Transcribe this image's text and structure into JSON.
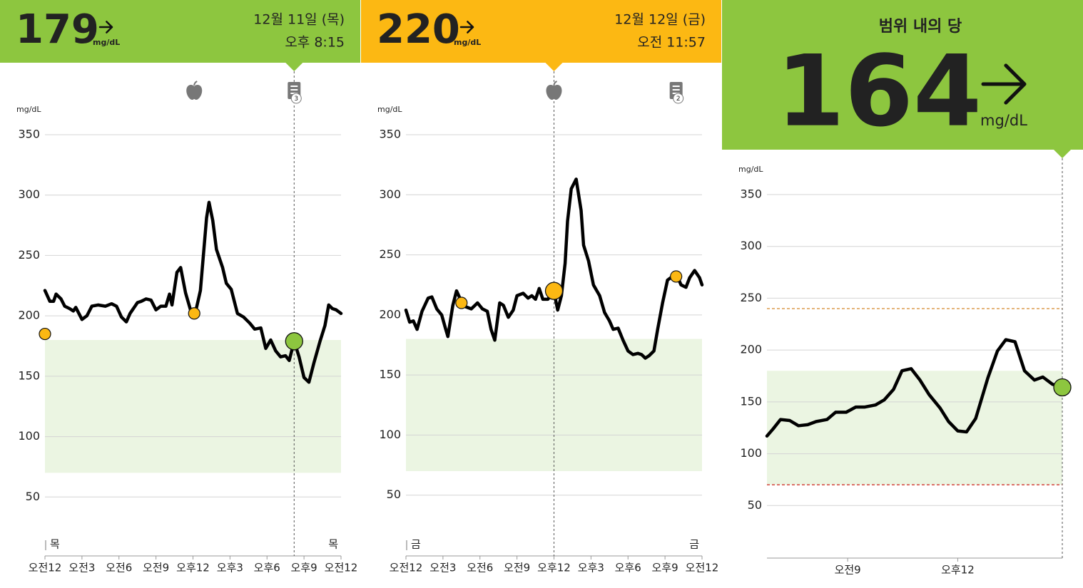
{
  "chart_data": [
    {
      "type": "line",
      "reading": 179,
      "reading_unit": "mg/dL",
      "date": "12월 11일 (목)",
      "time": "오후 8:15",
      "header_color": "#8dc63f",
      "y_label": "mg/dL",
      "xlim": [
        0,
        24
      ],
      "xticks": [
        {
          "value": 0,
          "label": "오전12"
        },
        {
          "value": 3,
          "label": "오전3"
        },
        {
          "value": 6,
          "label": "오전6"
        },
        {
          "value": 9,
          "label": "오전9"
        },
        {
          "value": 12,
          "label": "오후12"
        },
        {
          "value": 15,
          "label": "오후3"
        },
        {
          "value": 18,
          "label": "오후6"
        },
        {
          "value": 21,
          "label": "오후9"
        },
        {
          "value": 24,
          "label": "오전12"
        }
      ],
      "ylim": [
        0,
        350
      ],
      "yticks": [
        50,
        100,
        150,
        200,
        250,
        300,
        350
      ],
      "grid": true,
      "target_range": [
        70,
        180
      ],
      "target_color": "#ebf5e2",
      "day_labels": [
        "목",
        "목"
      ],
      "food_x": 12.1,
      "note_x": 20.2,
      "note_count": 3,
      "series": [
        {
          "color": "#000000",
          "x": [
            0,
            0.4,
            0.7,
            0.9,
            1.3,
            1.6,
            2.0,
            2.3,
            2.5,
            3.0,
            3.4,
            3.8,
            4.3,
            4.9,
            5.4,
            5.8,
            6.2,
            6.6,
            6.9,
            7.5,
            7.8,
            8.2,
            8.6,
            9.0,
            9.4,
            9.8,
            10.1,
            10.3,
            10.7,
            11.0,
            11.4,
            11.8,
            12.2,
            12.6,
            13.1,
            13.3,
            13.6,
            13.9,
            14.4,
            14.7,
            15.1,
            15.6,
            16.1,
            16.6,
            17.0,
            17.5,
            17.9,
            18.3,
            18.7,
            19.1,
            19.5,
            19.8,
            20.2,
            20.6,
            21.0,
            21.4,
            21.8,
            22.3,
            22.7,
            23.0,
            23.3,
            23.6,
            24.0
          ],
          "values": [
            221,
            212,
            212,
            218,
            214,
            208,
            206,
            204,
            207,
            197,
            200,
            208,
            209,
            208,
            210,
            208,
            199,
            195,
            202,
            211,
            212,
            214,
            213,
            205,
            208,
            208,
            218,
            209,
            236,
            240,
            219,
            205,
            203,
            221,
            281,
            294,
            279,
            255,
            240,
            227,
            222,
            202,
            199,
            194,
            189,
            190,
            173,
            180,
            171,
            166,
            167,
            163,
            179,
            166,
            149,
            145,
            161,
            179,
            192,
            209,
            206,
            205,
            202
          ]
        }
      ],
      "scans": {
        "color": "#fcb813",
        "x": [
          0,
          12.1
        ],
        "values": [
          185,
          202
        ]
      },
      "current_x": 20.2,
      "current_color": "#8dc63f"
    },
    {
      "type": "line",
      "reading": 220,
      "reading_unit": "mg/dL",
      "date": "12월 12일 (금)",
      "time": "오전 11:57",
      "header_color": "#fcb813",
      "y_label": "mg/dL",
      "xlim": [
        0,
        24
      ],
      "xticks": [
        {
          "value": 0,
          "label": "오전12"
        },
        {
          "value": 3,
          "label": "오전3"
        },
        {
          "value": 6,
          "label": "오전6"
        },
        {
          "value": 9,
          "label": "오전9"
        },
        {
          "value": 12,
          "label": "오후12"
        },
        {
          "value": 15,
          "label": "오후3"
        },
        {
          "value": 18,
          "label": "오후6"
        },
        {
          "value": 21,
          "label": "오후9"
        },
        {
          "value": 24,
          "label": "오전12"
        }
      ],
      "ylim": [
        0,
        350
      ],
      "yticks": [
        50,
        100,
        150,
        200,
        250,
        300,
        350
      ],
      "grid": true,
      "target_range": [
        70,
        180
      ],
      "target_color": "#ebf5e2",
      "day_labels": [
        "금",
        "금"
      ],
      "food_x": 12.0,
      "note_x": 21.9,
      "note_count": 2,
      "series": [
        {
          "color": "#000000",
          "x": [
            0,
            0.3,
            0.6,
            0.9,
            1.3,
            1.8,
            2.1,
            2.5,
            2.9,
            3.2,
            3.4,
            3.8,
            4.1,
            4.5,
            4.8,
            5.3,
            5.8,
            6.2,
            6.6,
            6.9,
            7.2,
            7.6,
            7.9,
            8.3,
            8.7,
            9.0,
            9.5,
            9.9,
            10.2,
            10.5,
            10.8,
            11.1,
            11.5,
            11.8,
            12.0,
            12.3,
            12.6,
            12.9,
            13.1,
            13.4,
            13.8,
            14.2,
            14.4,
            14.8,
            15.2,
            15.7,
            16.1,
            16.5,
            16.8,
            17.2,
            17.6,
            18.0,
            18.4,
            18.8,
            19.1,
            19.4,
            19.7,
            20.1,
            20.4,
            20.8,
            21.2,
            21.6,
            22.0,
            22.3,
            22.7,
            23.0,
            23.4,
            23.8,
            24.0
          ],
          "values": [
            204,
            194,
            195,
            188,
            203,
            214,
            215,
            205,
            200,
            189,
            182,
            208,
            220,
            211,
            207,
            205,
            210,
            205,
            203,
            188,
            179,
            210,
            208,
            198,
            204,
            216,
            218,
            214,
            216,
            213,
            222,
            213,
            213,
            217,
            219,
            204,
            216,
            243,
            278,
            305,
            313,
            287,
            258,
            245,
            225,
            216,
            202,
            195,
            188,
            189,
            179,
            170,
            167,
            168,
            167,
            164,
            166,
            170,
            188,
            210,
            229,
            232,
            232,
            225,
            223,
            231,
            237,
            231,
            225
          ]
        }
      ],
      "scans": {
        "color": "#fcb813",
        "x": [
          4.5,
          21.9
        ],
        "values": [
          210,
          232
        ]
      },
      "current_x": 12.0,
      "current_color": "#fcb813"
    },
    {
      "type": "line",
      "title": "범위 내의 당",
      "reading": 164,
      "reading_unit": "mg/dL",
      "header_color": "#8dc63f",
      "y_label": "mg/dL",
      "xlim": [
        6.8,
        14.85
      ],
      "xticks": [
        {
          "value": 9,
          "label": "오전9"
        },
        {
          "value": 12,
          "label": "오후12"
        }
      ],
      "ylim": [
        0,
        350
      ],
      "yticks": [
        50,
        100,
        150,
        200,
        250,
        300,
        350
      ],
      "grid": true,
      "target_range": [
        70,
        180
      ],
      "target_color": "#ebf5e2",
      "high_line": {
        "value": 240,
        "color": "#d4862a"
      },
      "low_line": {
        "value": 70,
        "color": "#d0342c"
      },
      "series": [
        {
          "color": "#000000",
          "x": [
            6.8,
            6.97,
            7.17,
            7.42,
            7.66,
            7.91,
            8.14,
            8.44,
            8.67,
            8.96,
            9.22,
            9.47,
            9.76,
            10.0,
            10.25,
            10.48,
            10.73,
            10.97,
            11.22,
            11.52,
            11.75,
            12.0,
            12.24,
            12.49,
            12.82,
            13.08,
            13.31,
            13.56,
            13.82,
            14.09,
            14.32,
            14.58,
            14.85
          ],
          "values": [
            117,
            124,
            133,
            132,
            127,
            128,
            131,
            133,
            140,
            140,
            145,
            145,
            147,
            152,
            162,
            180,
            182,
            171,
            157,
            144,
            131,
            122,
            121,
            134,
            173,
            199,
            210,
            208,
            180,
            171,
            174,
            167,
            164
          ]
        }
      ],
      "current_x": 14.85,
      "current_color": "#8dc63f"
    }
  ]
}
